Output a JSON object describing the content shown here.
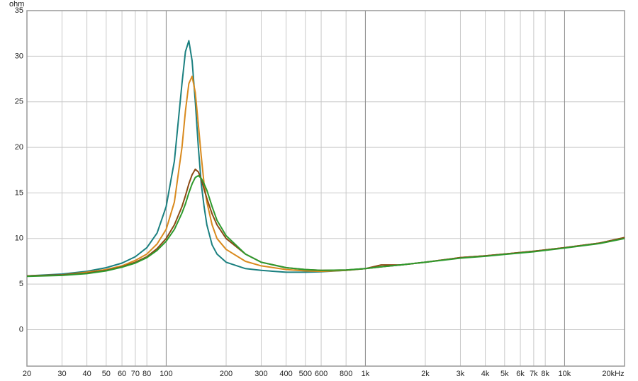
{
  "chart_data": {
    "type": "line",
    "y_label": "ohm",
    "xscale": "log",
    "grid": true,
    "x": [
      20,
      30,
      40,
      50,
      60,
      70,
      80,
      90,
      100,
      110,
      120,
      125,
      130,
      135,
      140,
      145,
      150,
      155,
      160,
      170,
      180,
      200,
      250,
      300,
      400,
      500,
      600,
      800,
      1000,
      1200,
      1500,
      2000,
      3000,
      4000,
      5000,
      7000,
      10000,
      15000,
      20000
    ],
    "series": [
      {
        "color": "#1b8080",
        "values": [
          5.9,
          6.1,
          6.4,
          6.8,
          7.3,
          8.0,
          9.0,
          10.6,
          13.5,
          18.5,
          27,
          30.5,
          31.7,
          29.5,
          25,
          20,
          16,
          13.5,
          11.5,
          9.3,
          8.3,
          7.4,
          6.7,
          6.5,
          6.3,
          6.3,
          6.35,
          6.5,
          6.7,
          6.9,
          7.1,
          7.4,
          7.9,
          8.1,
          8.3,
          8.6,
          9.0,
          9.5,
          10.1
        ]
      },
      {
        "color": "#d98a1e",
        "values": [
          5.9,
          6.0,
          6.3,
          6.6,
          7.0,
          7.6,
          8.3,
          9.4,
          11,
          14,
          20,
          24,
          27,
          27.8,
          26,
          22.5,
          19,
          16,
          14,
          11.5,
          10,
          8.8,
          7.5,
          7.0,
          6.6,
          6.45,
          6.4,
          6.5,
          6.7,
          6.9,
          7.1,
          7.4,
          7.9,
          8.1,
          8.3,
          8.6,
          9.0,
          9.5,
          10.1
        ]
      },
      {
        "color": "#8b4a14",
        "values": [
          5.9,
          6.0,
          6.2,
          6.5,
          6.9,
          7.4,
          8.0,
          8.9,
          10.0,
          11.5,
          13.5,
          14.7,
          16,
          17.0,
          17.6,
          17.3,
          16.5,
          15.4,
          14.4,
          12.7,
          11.5,
          10,
          8.3,
          7.4,
          6.8,
          6.6,
          6.5,
          6.55,
          6.7,
          7.1,
          7.1,
          7.4,
          7.9,
          8.1,
          8.3,
          8.6,
          9.0,
          9.5,
          10.1
        ]
      },
      {
        "color": "#2e9a2e",
        "values": [
          5.85,
          5.95,
          6.15,
          6.45,
          6.85,
          7.3,
          7.9,
          8.7,
          9.7,
          11,
          12.8,
          13.8,
          15,
          16,
          16.7,
          16.9,
          16.6,
          16,
          15.3,
          13.5,
          12.0,
          10.3,
          8.3,
          7.4,
          6.8,
          6.6,
          6.5,
          6.55,
          6.7,
          6.9,
          7.1,
          7.4,
          7.85,
          8.05,
          8.25,
          8.55,
          8.95,
          9.45,
          10.0
        ]
      }
    ],
    "xlim": [
      20,
      20000
    ],
    "ylim": [
      -4,
      35
    ],
    "xticks": [
      20,
      30,
      40,
      50,
      60,
      70,
      80,
      100,
      200,
      300,
      400,
      500,
      600,
      800,
      {
        "value": 1000,
        "label": "1k"
      },
      {
        "value": 2000,
        "label": "2k"
      },
      {
        "value": 3000,
        "label": "3k"
      },
      {
        "value": 4000,
        "label": "4k"
      },
      {
        "value": 5000,
        "label": "5k"
      },
      {
        "value": 6000,
        "label": "6k"
      },
      {
        "value": 7000,
        "label": "7k"
      },
      {
        "value": 8000,
        "label": "8k"
      },
      {
        "value": 10000,
        "label": "10k"
      },
      {
        "value": 20000,
        "label": "20kHz"
      }
    ],
    "yticks": [
      0,
      5,
      10,
      15,
      20,
      25,
      30,
      35
    ]
  }
}
